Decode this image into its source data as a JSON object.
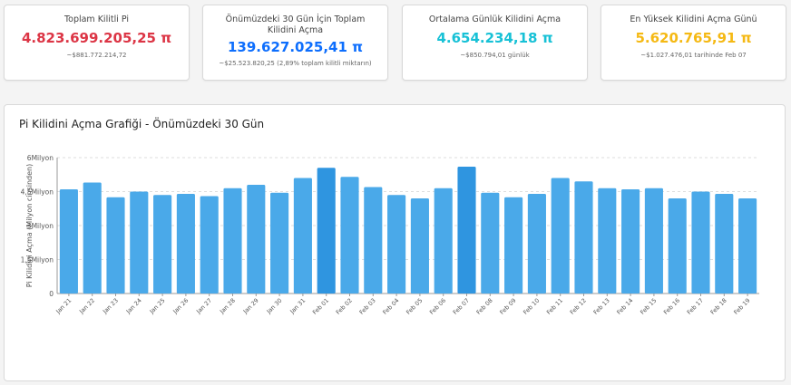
{
  "cards": [
    {
      "label": "Toplam Kilitli Pi",
      "value": "4.823.699.205,25 π",
      "sub": "~$881.772.214,72",
      "color": "#dc3545"
    },
    {
      "label": "Önümüzdeki 30 Gün İçin Toplam Kilidini Açma",
      "value": "139.627.025,41 π",
      "sub": "~$25.523.820,25 (2,89% toplam kilitli miktarın)",
      "color": "#0d6efd"
    },
    {
      "label": "Ortalama Günlük Kilidini Açma",
      "value": "4.654.234,18 π",
      "sub": "~$850.794,01 günlük",
      "color": "#17c1d6"
    },
    {
      "label": "En Yüksek Kilidini Açma Günü",
      "value": "5.620.765,91 π",
      "sub": "~$1.027.476,01 tarihinde Feb 07",
      "color": "#f5b914"
    }
  ],
  "chart_panel": {
    "title": "Pi Kilidini Açma Grafiği - Önümüzdeki 30 Gün"
  },
  "chart_data": {
    "type": "bar",
    "title": "Pi Kilidini Açma Grafiği - Önümüzdeki 30 Gün",
    "ylabel": "Pi Kilidini Açma (Milyon cinsinden)",
    "xlabel": "",
    "ylim": [
      0,
      6
    ],
    "yticks": [
      0,
      1.5,
      3,
      4.5,
      6
    ],
    "ytick_labels": [
      "0",
      "1,5Milyon",
      "3Milyon",
      "4,5Milyon",
      "6Milyon"
    ],
    "grid": "horizontal",
    "bar_color": "#4aa9e9",
    "highlight_color": "#2f95e0",
    "categories": [
      "Jan 21",
      "Jan 22",
      "Jan 23",
      "Jan 24",
      "Jan 25",
      "Jan 26",
      "Jan 27",
      "Jan 28",
      "Jan 29",
      "Jan 30",
      "Jan 31",
      "Feb 01",
      "Feb 02",
      "Feb 03",
      "Feb 04",
      "Feb 05",
      "Feb 06",
      "Feb 07",
      "Feb 08",
      "Feb 09",
      "Feb 10",
      "Feb 11",
      "Feb 12",
      "Feb 13",
      "Feb 14",
      "Feb 15",
      "Feb 16",
      "Feb 17",
      "Feb 18",
      "Feb 19"
    ],
    "values": [
      4.6,
      4.9,
      4.25,
      4.5,
      4.35,
      4.4,
      4.3,
      4.65,
      4.8,
      4.45,
      5.1,
      5.55,
      5.15,
      4.7,
      4.35,
      4.2,
      4.65,
      5.6,
      4.45,
      4.25,
      4.4,
      5.1,
      4.95,
      4.65,
      4.6,
      4.65,
      4.2,
      4.5,
      4.4,
      4.2
    ],
    "highlight": [
      11,
      17
    ]
  }
}
